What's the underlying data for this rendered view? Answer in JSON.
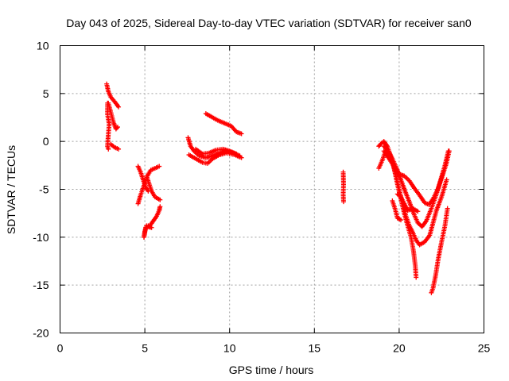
{
  "chart_data": {
    "type": "scatter",
    "title": "Day 043 of 2025, Sidereal Day-to-day VTEC variation (SDTVAR) for receiver san0",
    "xlabel": "GPS time / hours",
    "ylabel": "SDTVAR / TECUs",
    "xlim": [
      0,
      25
    ],
    "ylim": [
      -20,
      10
    ],
    "x_ticks": [
      0,
      5,
      10,
      15,
      20,
      25
    ],
    "y_ticks": [
      -20,
      -15,
      -10,
      -5,
      0,
      5,
      10
    ],
    "x_tick_labels": [
      "0",
      "5",
      "10",
      "15",
      "20",
      "25"
    ],
    "y_tick_labels": [
      "-20",
      "-15",
      "-10",
      "-5",
      "0",
      "5",
      "10"
    ],
    "grid": true,
    "marker": "+",
    "marker_color": "#ff0000",
    "series_segments": [
      {
        "name": "arc1a",
        "points": [
          [
            2.75,
            6.0
          ],
          [
            2.85,
            5.2
          ],
          [
            3.0,
            4.6
          ],
          [
            3.2,
            4.2
          ],
          [
            3.45,
            3.6
          ]
        ]
      },
      {
        "name": "arc1b",
        "points": [
          [
            2.8,
            4.0
          ],
          [
            2.8,
            2.8
          ],
          [
            2.9,
            1.8
          ],
          [
            2.85,
            0.8
          ],
          [
            2.8,
            -0.5
          ],
          [
            2.85,
            -0.8
          ]
        ]
      },
      {
        "name": "arc1c",
        "points": [
          [
            2.85,
            4.0
          ],
          [
            3.0,
            3.0
          ],
          [
            3.15,
            2.0
          ],
          [
            3.3,
            1.3
          ],
          [
            3.4,
            1.5
          ]
        ]
      },
      {
        "name": "arc1d",
        "points": [
          [
            3.0,
            -0.3
          ],
          [
            3.2,
            -0.6
          ],
          [
            3.45,
            -0.8
          ]
        ]
      },
      {
        "name": "arc2a",
        "points": [
          [
            4.6,
            -2.6
          ],
          [
            4.75,
            -3.2
          ],
          [
            4.9,
            -4.0
          ],
          [
            5.05,
            -4.8
          ],
          [
            5.2,
            -5.2
          ]
        ]
      },
      {
        "name": "arc2b",
        "points": [
          [
            4.6,
            -6.5
          ],
          [
            4.75,
            -5.6
          ],
          [
            4.95,
            -4.6
          ],
          [
            5.15,
            -3.6
          ],
          [
            5.35,
            -3.0
          ],
          [
            5.6,
            -2.8
          ],
          [
            5.85,
            -2.6
          ]
        ]
      },
      {
        "name": "arc2c",
        "points": [
          [
            5.1,
            -3.6
          ],
          [
            5.25,
            -4.4
          ],
          [
            5.4,
            -5.2
          ],
          [
            5.6,
            -5.8
          ],
          [
            5.9,
            -6.1
          ]
        ]
      },
      {
        "name": "arc2d",
        "points": [
          [
            4.95,
            -10.0
          ],
          [
            5.0,
            -9.4
          ],
          [
            5.1,
            -8.8
          ],
          [
            5.3,
            -8.8
          ],
          [
            5.5,
            -8.3
          ],
          [
            5.7,
            -7.8
          ],
          [
            5.85,
            -7.2
          ],
          [
            5.9,
            -6.8
          ]
        ]
      },
      {
        "name": "arc2e",
        "points": [
          [
            4.95,
            -10.0
          ],
          [
            5.05,
            -9.0
          ],
          [
            5.2,
            -8.9
          ],
          [
            5.4,
            -9.0
          ]
        ]
      },
      {
        "name": "arc3a",
        "points": [
          [
            7.55,
            0.4
          ],
          [
            7.7,
            -0.5
          ],
          [
            7.9,
            -1.0
          ],
          [
            8.2,
            -1.5
          ],
          [
            8.6,
            -1.7
          ],
          [
            9.0,
            -1.5
          ],
          [
            9.4,
            -1.2
          ],
          [
            9.8,
            -1.0
          ],
          [
            10.2,
            -1.2
          ],
          [
            10.6,
            -1.5
          ]
        ]
      },
      {
        "name": "arc3b",
        "points": [
          [
            7.6,
            -1.4
          ],
          [
            8.0,
            -1.8
          ],
          [
            8.4,
            -2.2
          ],
          [
            8.7,
            -2.3
          ],
          [
            9.0,
            -1.8
          ],
          [
            9.4,
            -1.4
          ],
          [
            9.8,
            -1.2
          ],
          [
            10.3,
            -1.4
          ],
          [
            10.7,
            -1.7
          ]
        ]
      },
      {
        "name": "arc3c",
        "points": [
          [
            8.0,
            -0.8
          ],
          [
            8.4,
            -1.3
          ],
          [
            8.8,
            -1.2
          ],
          [
            9.2,
            -0.9
          ],
          [
            9.6,
            -0.8
          ],
          [
            10.0,
            -1.0
          ],
          [
            10.4,
            -1.3
          ]
        ]
      },
      {
        "name": "arc3d",
        "points": [
          [
            8.6,
            2.9
          ],
          [
            8.9,
            2.6
          ],
          [
            9.3,
            2.2
          ],
          [
            9.7,
            1.9
          ],
          [
            10.1,
            1.6
          ],
          [
            10.4,
            1.0
          ],
          [
            10.7,
            0.8
          ]
        ]
      },
      {
        "name": "arc4",
        "points": [
          [
            16.7,
            -3.2
          ],
          [
            16.72,
            -4.5
          ],
          [
            16.7,
            -5.5
          ],
          [
            16.72,
            -6.3
          ]
        ]
      },
      {
        "name": "arc5a",
        "points": [
          [
            18.8,
            -0.5
          ],
          [
            18.95,
            -0.2
          ],
          [
            19.1,
            0.0
          ],
          [
            19.3,
            -0.5
          ],
          [
            19.5,
            -1.5
          ],
          [
            19.7,
            -2.8
          ],
          [
            19.9,
            -4.5
          ],
          [
            20.1,
            -6.0
          ],
          [
            20.3,
            -7.5
          ],
          [
            20.5,
            -8.8
          ],
          [
            20.7,
            -10.0
          ],
          [
            20.85,
            -11.5
          ],
          [
            20.95,
            -13.0
          ],
          [
            21.0,
            -14.2
          ]
        ]
      },
      {
        "name": "arc5b",
        "points": [
          [
            18.8,
            -2.8
          ],
          [
            19.0,
            -2.0
          ],
          [
            19.2,
            -1.0
          ],
          [
            19.4,
            -1.3
          ],
          [
            19.6,
            -2.2
          ],
          [
            19.8,
            -3.5
          ],
          [
            20.0,
            -5.0
          ],
          [
            20.2,
            -6.5
          ],
          [
            20.4,
            -7.8
          ],
          [
            20.6,
            -8.8
          ],
          [
            20.8,
            -9.5
          ],
          [
            21.0,
            -10.3
          ],
          [
            21.2,
            -10.8
          ],
          [
            21.5,
            -10.5
          ],
          [
            21.8,
            -9.8
          ],
          [
            22.0,
            -8.5
          ],
          [
            22.2,
            -7.2
          ],
          [
            22.5,
            -5.8
          ],
          [
            22.8,
            -4.0
          ]
        ]
      },
      {
        "name": "arc5c",
        "points": [
          [
            19.1,
            -0.5
          ],
          [
            19.35,
            -1.0
          ],
          [
            19.6,
            -1.8
          ],
          [
            19.85,
            -2.8
          ],
          [
            20.1,
            -4.0
          ],
          [
            20.35,
            -5.2
          ],
          [
            20.6,
            -6.3
          ],
          [
            20.85,
            -7.5
          ],
          [
            21.1,
            -8.5
          ],
          [
            21.35,
            -8.9
          ],
          [
            21.6,
            -8.3
          ],
          [
            21.9,
            -7.0
          ],
          [
            22.2,
            -5.5
          ],
          [
            22.45,
            -4.0
          ],
          [
            22.7,
            -2.5
          ],
          [
            22.9,
            -1.0
          ]
        ]
      },
      {
        "name": "arc5d",
        "points": [
          [
            19.1,
            -1.0
          ],
          [
            19.4,
            -1.8
          ],
          [
            19.7,
            -2.6
          ],
          [
            20.0,
            -3.4
          ],
          [
            20.3,
            -3.6
          ],
          [
            20.6,
            -4.1
          ],
          [
            20.9,
            -4.9
          ],
          [
            21.2,
            -5.6
          ],
          [
            21.5,
            -6.4
          ],
          [
            21.75,
            -6.6
          ],
          [
            22.0,
            -6.0
          ],
          [
            22.3,
            -4.9
          ],
          [
            22.55,
            -3.6
          ],
          [
            22.8,
            -2.2
          ],
          [
            22.95,
            -1.0
          ]
        ]
      },
      {
        "name": "arc5e",
        "points": [
          [
            19.9,
            -5.5
          ],
          [
            20.1,
            -5.8
          ],
          [
            20.3,
            -6.5
          ],
          [
            20.5,
            -7.2
          ],
          [
            20.8,
            -7.0
          ],
          [
            21.1,
            -7.3
          ]
        ]
      },
      {
        "name": "arc5f",
        "points": [
          [
            19.6,
            -6.2
          ],
          [
            19.75,
            -7.0
          ],
          [
            19.9,
            -8.0
          ],
          [
            20.1,
            -8.2
          ]
        ]
      },
      {
        "name": "arc5g",
        "points": [
          [
            21.9,
            -15.8
          ],
          [
            22.0,
            -15.3
          ],
          [
            22.15,
            -14.0
          ],
          [
            22.3,
            -12.3
          ],
          [
            22.5,
            -10.5
          ],
          [
            22.7,
            -8.8
          ],
          [
            22.85,
            -7.0
          ]
        ]
      }
    ]
  }
}
